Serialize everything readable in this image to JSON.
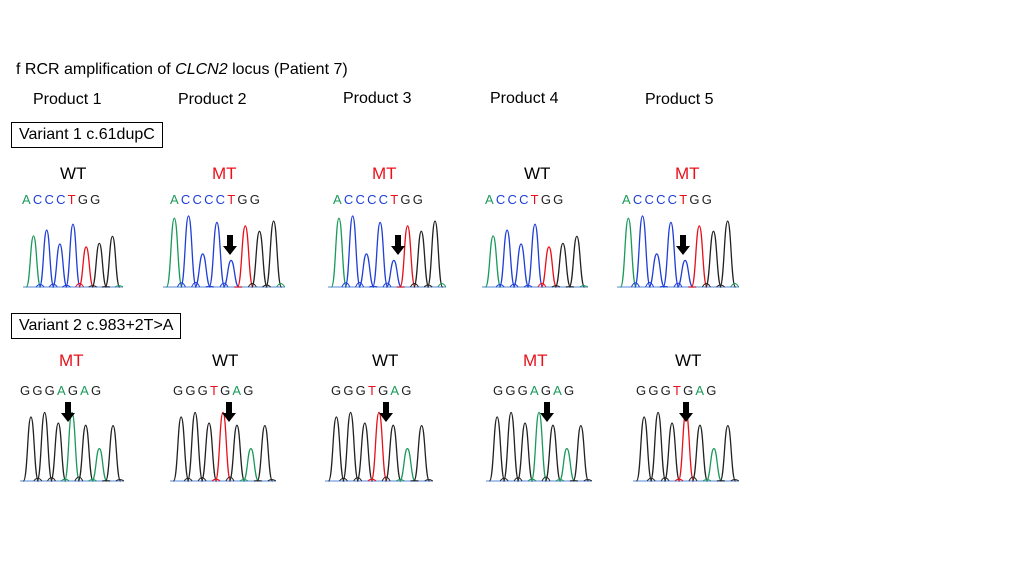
{
  "title": {
    "prefix": "f RCR amplification of ",
    "gene": "CLCN2",
    "suffix": " locus (Patient 7)"
  },
  "products": [
    "Product 1",
    "Product 2",
    "Product 3",
    "Product 4",
    "Product 5"
  ],
  "variants": [
    {
      "label": "Variant 1 c.61dupC",
      "panels": [
        {
          "status": "WT",
          "sequence": [
            "A",
            "C",
            "C",
            "C",
            "T",
            "G",
            "G"
          ],
          "arrow": false
        },
        {
          "status": "MT",
          "sequence": [
            "A",
            "C",
            "C",
            "C",
            "C",
            "T",
            "G",
            "G"
          ],
          "arrow": true
        },
        {
          "status": "MT",
          "sequence": [
            "A",
            "C",
            "C",
            "C",
            "C",
            "T",
            "G",
            "G"
          ],
          "arrow": true
        },
        {
          "status": "WT",
          "sequence": [
            "A",
            "C",
            "C",
            "C",
            "T",
            "G",
            "G"
          ],
          "arrow": false
        },
        {
          "status": "MT",
          "sequence": [
            "A",
            "C",
            "C",
            "C",
            "C",
            "T",
            "G",
            "G"
          ],
          "arrow": true
        }
      ]
    },
    {
      "label": "Variant 2 c.983+2T>A",
      "panels": [
        {
          "status": "MT",
          "sequence": [
            "G",
            "G",
            "G",
            "A",
            "G",
            "A",
            "G"
          ],
          "arrow": true
        },
        {
          "status": "WT",
          "sequence": [
            "G",
            "G",
            "G",
            "T",
            "G",
            "A",
            "G"
          ],
          "arrow": true
        },
        {
          "status": "WT",
          "sequence": [
            "G",
            "G",
            "G",
            "T",
            "G",
            "A",
            "G"
          ],
          "arrow": true
        },
        {
          "status": "MT",
          "sequence": [
            "G",
            "G",
            "G",
            "A",
            "G",
            "A",
            "G"
          ],
          "arrow": true
        },
        {
          "status": "WT",
          "sequence": [
            "G",
            "G",
            "G",
            "T",
            "G",
            "A",
            "G"
          ],
          "arrow": true
        }
      ]
    }
  ],
  "colors": {
    "A": "#1a9a5a",
    "C": "#1f3fd6",
    "G": "#222222",
    "T": "#e8101a",
    "mt": "#e8101a",
    "wt": "#000000"
  }
}
